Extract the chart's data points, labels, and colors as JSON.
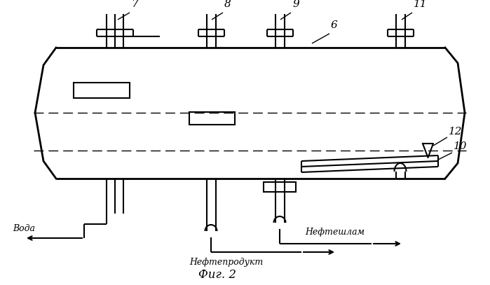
{
  "fig_width": 6.99,
  "fig_height": 4.07,
  "dpi": 100,
  "bg_color": "#ffffff",
  "line_color": "#000000",
  "title": "Фиг. 2",
  "labels": {
    "voda": "Вода",
    "nefteproduk": "Нефтепродукт",
    "nefteshlam": "Нефтешлам"
  }
}
